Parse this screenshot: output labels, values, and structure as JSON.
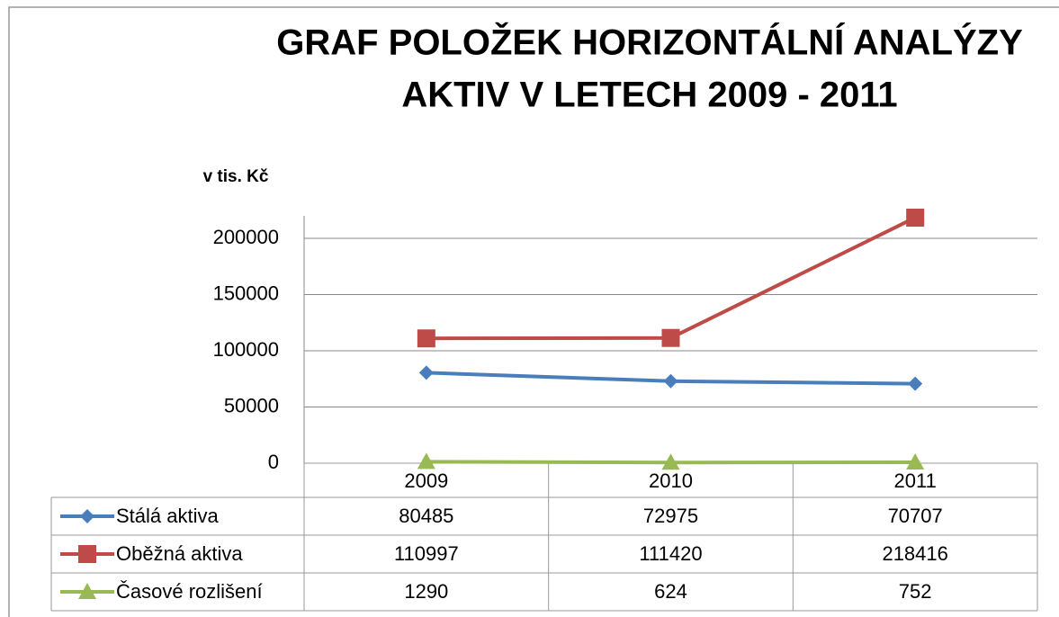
{
  "chart_data": {
    "type": "line",
    "title": [
      "GRAF POLOŽEK HORIZONTÁLNÍ ANALÝZY",
      "AKTIV V LETECH  2009 - 2011"
    ],
    "y_label": "v  tis. Kč",
    "categories": [
      "2009",
      "2010",
      "2011"
    ],
    "series": [
      {
        "name": "Stálá aktiva",
        "color": "#4a7ebb",
        "marker": "diamond",
        "values": [
          80485,
          72975,
          70707
        ]
      },
      {
        "name": "Oběžná aktiva",
        "color": "#be4b48",
        "marker": "square",
        "values": [
          110997,
          111420,
          218416
        ]
      },
      {
        "name": "Časové rozlišení",
        "color": "#98b954",
        "marker": "triangle",
        "values": [
          1290,
          624,
          752
        ]
      }
    ],
    "ylim": [
      0,
      220000
    ],
    "yticks": [
      0,
      50000,
      100000,
      150000,
      200000
    ],
    "grid": true,
    "data_table": true
  }
}
